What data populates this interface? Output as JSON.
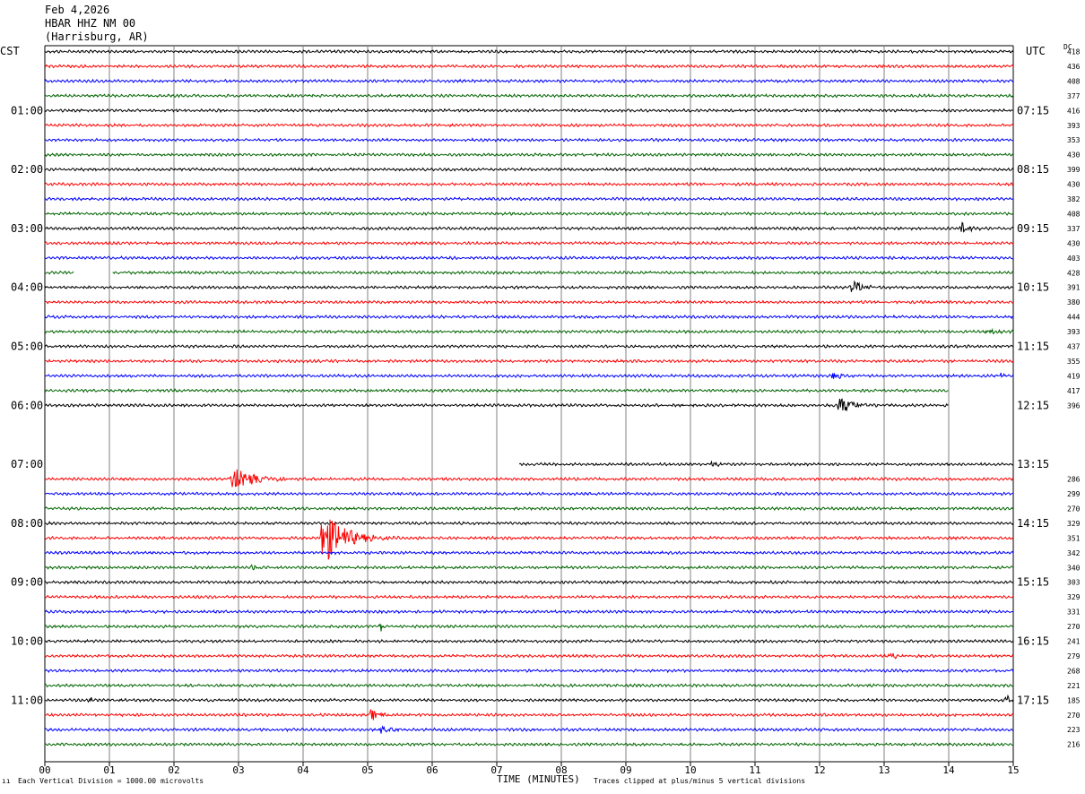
{
  "header": {
    "date": "Feb 4,2026",
    "station": "HBAR HHZ NM 00",
    "location": "(Harrisburg, AR)"
  },
  "axes": {
    "left_label": "CST",
    "right_label": "UTC",
    "dc_label": "DC",
    "x_title": "TIME (MINUTES)"
  },
  "footer": {
    "scale_note": "Each Vertical Division = 1000.00 microvolts",
    "clip_note": "Traces clipped at plus/minus 5 vertical divisions",
    "mark": "ıı"
  },
  "colors": {
    "cycle": [
      "#000000",
      "#ff0000",
      "#0000ff",
      "#006400"
    ],
    "grid": "#808080"
  },
  "chart_data": {
    "type": "line",
    "title": "Feb 4,2026 HBAR HHZ NM 00 (Harrisburg, AR)",
    "xlabel": "TIME (MINUTES)",
    "x_ticks": [
      "00",
      "01",
      "02",
      "03",
      "04",
      "05",
      "06",
      "07",
      "08",
      "09",
      "10",
      "11",
      "12",
      "13",
      "14",
      "15"
    ],
    "xlim": [
      0,
      15
    ],
    "rows_per_hour": 4,
    "minutes_per_row": 15,
    "grid": "vertical lines each minute",
    "cst_hour_labels": [
      {
        "row": 4,
        "label": "01:00"
      },
      {
        "row": 8,
        "label": "02:00"
      },
      {
        "row": 12,
        "label": "03:00"
      },
      {
        "row": 16,
        "label": "04:00"
      },
      {
        "row": 20,
        "label": "05:00"
      },
      {
        "row": 24,
        "label": "06:00"
      },
      {
        "row": 28,
        "label": "07:00"
      },
      {
        "row": 32,
        "label": "08:00"
      },
      {
        "row": 36,
        "label": "09:00"
      },
      {
        "row": 40,
        "label": "10:00"
      },
      {
        "row": 44,
        "label": "11:00"
      }
    ],
    "utc_hour_labels": [
      {
        "row": 4,
        "label": "07:15"
      },
      {
        "row": 8,
        "label": "08:15"
      },
      {
        "row": 12,
        "label": "09:15"
      },
      {
        "row": 16,
        "label": "10:15"
      },
      {
        "row": 20,
        "label": "11:15"
      },
      {
        "row": 24,
        "label": "12:15"
      },
      {
        "row": 28,
        "label": "13:15"
      },
      {
        "row": 32,
        "label": "14:15"
      },
      {
        "row": 36,
        "label": "15:15"
      },
      {
        "row": 40,
        "label": "16:15"
      },
      {
        "row": 44,
        "label": "17:15"
      }
    ],
    "dc_offsets": [
      {
        "row": 0,
        "value": "418"
      },
      {
        "row": 1,
        "value": "436"
      },
      {
        "row": 2,
        "value": "408"
      },
      {
        "row": 3,
        "value": "377"
      },
      {
        "row": 4,
        "value": "416"
      },
      {
        "row": 5,
        "value": "393"
      },
      {
        "row": 6,
        "value": "353"
      },
      {
        "row": 7,
        "value": "430"
      },
      {
        "row": 8,
        "value": "399"
      },
      {
        "row": 9,
        "value": "430"
      },
      {
        "row": 10,
        "value": "382"
      },
      {
        "row": 11,
        "value": "408"
      },
      {
        "row": 12,
        "value": "337"
      },
      {
        "row": 13,
        "value": "430"
      },
      {
        "row": 14,
        "value": "403"
      },
      {
        "row": 15,
        "value": "428"
      },
      {
        "row": 16,
        "value": "391"
      },
      {
        "row": 17,
        "value": "380"
      },
      {
        "row": 18,
        "value": "444"
      },
      {
        "row": 19,
        "value": "393"
      },
      {
        "row": 20,
        "value": "437"
      },
      {
        "row": 21,
        "value": "355"
      },
      {
        "row": 22,
        "value": "419"
      },
      {
        "row": 23,
        "value": "417"
      },
      {
        "row": 24,
        "value": "396"
      },
      {
        "row": 29,
        "value": "286"
      },
      {
        "row": 30,
        "value": "299"
      },
      {
        "row": 31,
        "value": "270"
      },
      {
        "row": 32,
        "value": "329"
      },
      {
        "row": 33,
        "value": "351"
      },
      {
        "row": 34,
        "value": "342"
      },
      {
        "row": 35,
        "value": "340"
      },
      {
        "row": 36,
        "value": "303"
      },
      {
        "row": 37,
        "value": "329"
      },
      {
        "row": 38,
        "value": "331"
      },
      {
        "row": 39,
        "value": "270"
      },
      {
        "row": 40,
        "value": "241"
      },
      {
        "row": 41,
        "value": "279"
      },
      {
        "row": 42,
        "value": "268"
      },
      {
        "row": 43,
        "value": "221"
      },
      {
        "row": 44,
        "value": "185"
      },
      {
        "row": 45,
        "value": "270"
      },
      {
        "row": 46,
        "value": "223"
      },
      {
        "row": 47,
        "value": "216"
      }
    ],
    "trace_spans": [
      {
        "row": 0,
        "start": 0,
        "end": 15
      },
      {
        "row": 1,
        "start": 0,
        "end": 15
      },
      {
        "row": 2,
        "start": 0,
        "end": 15
      },
      {
        "row": 3,
        "start": 0,
        "end": 15
      },
      {
        "row": 4,
        "start": 0,
        "end": 15
      },
      {
        "row": 5,
        "start": 0,
        "end": 15
      },
      {
        "row": 6,
        "start": 0,
        "end": 15
      },
      {
        "row": 7,
        "start": 0,
        "end": 15
      },
      {
        "row": 8,
        "start": 0,
        "end": 15
      },
      {
        "row": 9,
        "start": 0,
        "end": 15
      },
      {
        "row": 10,
        "start": 0,
        "end": 15
      },
      {
        "row": 11,
        "start": 0,
        "end": 15
      },
      {
        "row": 12,
        "start": 0,
        "end": 15
      },
      {
        "row": 13,
        "start": 0,
        "end": 15
      },
      {
        "row": 14,
        "start": 0,
        "end": 15
      },
      {
        "row": 15,
        "start": 0,
        "end": 0.45
      },
      {
        "row": 15,
        "start": 1.05,
        "end": 15
      },
      {
        "row": 16,
        "start": 0,
        "end": 15
      },
      {
        "row": 17,
        "start": 0,
        "end": 15
      },
      {
        "row": 18,
        "start": 0,
        "end": 15
      },
      {
        "row": 19,
        "start": 0,
        "end": 15
      },
      {
        "row": 20,
        "start": 0,
        "end": 15
      },
      {
        "row": 21,
        "start": 0,
        "end": 15
      },
      {
        "row": 22,
        "start": 0,
        "end": 15
      },
      {
        "row": 23,
        "start": 0,
        "end": 14
      },
      {
        "row": 24,
        "start": 0,
        "end": 14
      },
      {
        "row": 28,
        "start": 7.35,
        "end": 15
      },
      {
        "row": 29,
        "start": 0,
        "end": 15
      },
      {
        "row": 30,
        "start": 0,
        "end": 15
      },
      {
        "row": 31,
        "start": 0,
        "end": 15
      },
      {
        "row": 32,
        "start": 0,
        "end": 15
      },
      {
        "row": 33,
        "start": 0,
        "end": 15
      },
      {
        "row": 34,
        "start": 0,
        "end": 15
      },
      {
        "row": 35,
        "start": 0,
        "end": 15
      },
      {
        "row": 36,
        "start": 0,
        "end": 15
      },
      {
        "row": 37,
        "start": 0,
        "end": 15
      },
      {
        "row": 38,
        "start": 0,
        "end": 15
      },
      {
        "row": 39,
        "start": 0,
        "end": 15
      },
      {
        "row": 40,
        "start": 0,
        "end": 15
      },
      {
        "row": 41,
        "start": 0,
        "end": 15
      },
      {
        "row": 42,
        "start": 0,
        "end": 15
      },
      {
        "row": 43,
        "start": 0,
        "end": 15
      },
      {
        "row": 44,
        "start": 0,
        "end": 15
      },
      {
        "row": 45,
        "start": 0,
        "end": 15
      },
      {
        "row": 46,
        "start": 0,
        "end": 15
      },
      {
        "row": 47,
        "start": 0,
        "end": 15
      }
    ],
    "events": [
      {
        "row": 12,
        "minute": 14.2,
        "amp_divs": 1.3,
        "duration_min": 0.3
      },
      {
        "row": 16,
        "minute": 12.5,
        "amp_divs": 1.4,
        "duration_min": 0.4
      },
      {
        "row": 19,
        "minute": 14.6,
        "amp_divs": 0.5,
        "duration_min": 0.4
      },
      {
        "row": 22,
        "minute": 12.2,
        "amp_divs": 0.6,
        "duration_min": 0.5
      },
      {
        "row": 22,
        "minute": 14.8,
        "amp_divs": 0.4,
        "duration_min": 0.3
      },
      {
        "row": 24,
        "minute": 12.3,
        "amp_divs": 1.6,
        "duration_min": 0.6
      },
      {
        "row": 28,
        "minute": 10.3,
        "amp_divs": 0.7,
        "duration_min": 0.3
      },
      {
        "row": 29,
        "minute": 2.9,
        "amp_divs": 2.0,
        "duration_min": 0.9
      },
      {
        "row": 33,
        "minute": 4.3,
        "amp_divs": 5.0,
        "duration_min": 0.9
      },
      {
        "row": 35,
        "minute": 3.2,
        "amp_divs": 0.4,
        "duration_min": 0.4
      },
      {
        "row": 39,
        "minute": 5.2,
        "amp_divs": 1.0,
        "duration_min": 0.1
      },
      {
        "row": 41,
        "minute": 13.1,
        "amp_divs": 0.5,
        "duration_min": 0.3
      },
      {
        "row": 44,
        "minute": 0.7,
        "amp_divs": 0.7,
        "duration_min": 0.1
      },
      {
        "row": 44,
        "minute": 14.9,
        "amp_divs": 1.2,
        "duration_min": 0.2
      },
      {
        "row": 45,
        "minute": 5.05,
        "amp_divs": 1.1,
        "duration_min": 0.4
      },
      {
        "row": 46,
        "minute": 5.2,
        "amp_divs": 0.6,
        "duration_min": 0.8
      }
    ]
  }
}
